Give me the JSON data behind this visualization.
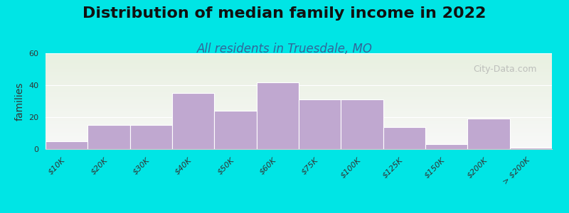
{
  "title": "Distribution of median family income in 2022",
  "subtitle": "All residents in Truesdale, MO",
  "xlabel": "",
  "ylabel": "families",
  "categories": [
    "$10K",
    "$20K",
    "$30K",
    "$40K",
    "$50K",
    "$60K",
    "$75K",
    "$100K",
    "$125K",
    "$150K",
    "$200K",
    "> $200K"
  ],
  "values": [
    5,
    15,
    15,
    35,
    24,
    42,
    31,
    31,
    14,
    3,
    19,
    1
  ],
  "ylim": [
    0,
    60
  ],
  "yticks": [
    0,
    20,
    40,
    60
  ],
  "bar_color": "#c0a8d0",
  "bar_edge_color": "#ffffff",
  "bg_outer": "#00e5e5",
  "bg_plot_top": "#e8f0e0",
  "bg_plot_bottom": "#f5f5f5",
  "watermark": "City-Data.com",
  "title_fontsize": 16,
  "subtitle_fontsize": 12,
  "ylabel_fontsize": 10,
  "tick_fontsize": 8
}
